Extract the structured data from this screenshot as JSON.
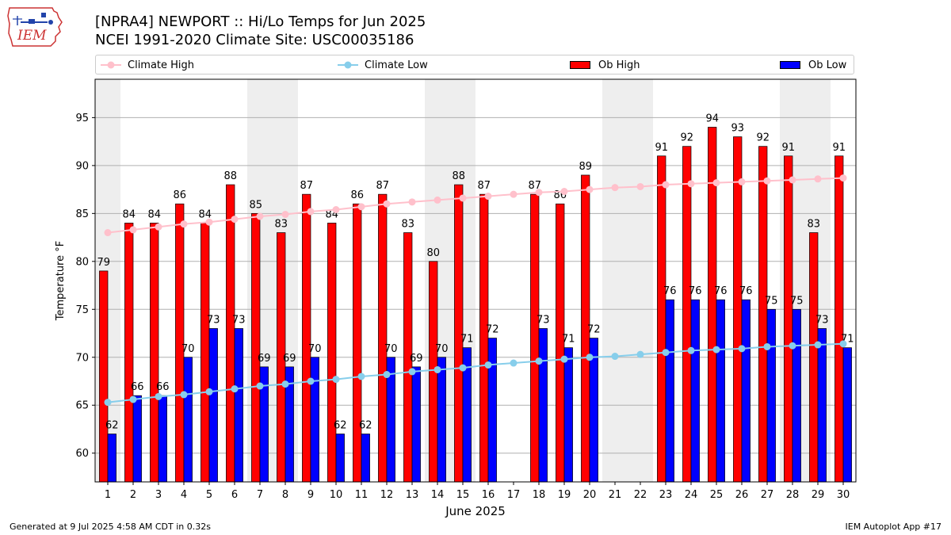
{
  "logo": {
    "text": "IEM"
  },
  "header": {
    "title_line1": "[NPRA4] NEWPORT :: Hi/Lo Temps for Jun 2025",
    "title_line2": "NCEI 1991-2020 Climate Site: USC00035186"
  },
  "legend": {
    "climate_high": "Climate High",
    "climate_low": "Climate Low",
    "ob_high": "Ob High",
    "ob_low": "Ob Low"
  },
  "colors": {
    "ob_high": "#ff0000",
    "ob_low": "#0000ff",
    "climate_high": "#ffc0cb",
    "climate_low": "#87ceeb",
    "weekend_shade": "#eeeeee"
  },
  "footer": {
    "generated": "Generated at 9 Jul 2025 4:58 AM CDT in 0.32s",
    "app": "IEM Autoplot App #17"
  },
  "chart_data": {
    "type": "bar",
    "xlabel": "June 2025",
    "ylabel": "Temperature °F",
    "ylim": [
      57,
      99
    ],
    "yticks": [
      60,
      65,
      70,
      75,
      80,
      85,
      90,
      95
    ],
    "grid": true,
    "legend_position": "top",
    "categories": [
      "1",
      "2",
      "3",
      "4",
      "5",
      "6",
      "7",
      "8",
      "9",
      "10",
      "11",
      "12",
      "13",
      "14",
      "15",
      "16",
      "17",
      "18",
      "19",
      "20",
      "21",
      "22",
      "23",
      "24",
      "25",
      "26",
      "27",
      "28",
      "29",
      "30"
    ],
    "shaded_days": [
      1,
      7,
      8,
      14,
      15,
      21,
      22,
      28,
      29
    ],
    "series": [
      {
        "name": "Ob High",
        "kind": "bar",
        "values": [
          79,
          84,
          84,
          86,
          84,
          88,
          85,
          83,
          87,
          84,
          86,
          87,
          83,
          80,
          88,
          87,
          null,
          87,
          86,
          89,
          null,
          null,
          91,
          92,
          94,
          93,
          92,
          91,
          83,
          91
        ]
      },
      {
        "name": "Ob Low",
        "kind": "bar",
        "values": [
          62,
          66,
          66,
          70,
          73,
          73,
          69,
          69,
          70,
          62,
          62,
          70,
          69,
          70,
          71,
          72,
          null,
          73,
          71,
          72,
          null,
          null,
          76,
          76,
          76,
          76,
          75,
          75,
          73,
          71
        ]
      },
      {
        "name": "Climate High",
        "kind": "line",
        "values": [
          83.0,
          83.3,
          83.6,
          83.9,
          84.1,
          84.4,
          84.7,
          84.9,
          85.2,
          85.4,
          85.7,
          86.0,
          86.2,
          86.4,
          86.6,
          86.8,
          87.0,
          87.2,
          87.3,
          87.5,
          87.7,
          87.8,
          88.0,
          88.1,
          88.2,
          88.3,
          88.4,
          88.5,
          88.6,
          88.7
        ]
      },
      {
        "name": "Climate Low",
        "kind": "line",
        "values": [
          65.3,
          65.6,
          65.9,
          66.1,
          66.4,
          66.7,
          67.0,
          67.2,
          67.5,
          67.7,
          68.0,
          68.2,
          68.5,
          68.7,
          68.9,
          69.2,
          69.4,
          69.6,
          69.8,
          70.0,
          70.1,
          70.3,
          70.5,
          70.7,
          70.8,
          70.9,
          71.1,
          71.2,
          71.3,
          71.4
        ]
      }
    ]
  }
}
